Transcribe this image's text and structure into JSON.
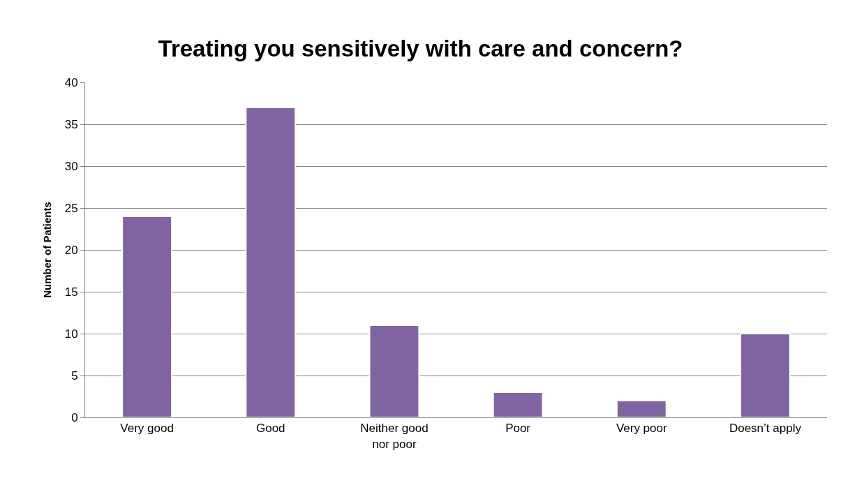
{
  "chart_data": {
    "type": "bar",
    "title": "Treating you sensitively with care and concern?",
    "ylabel": "Number of Patients",
    "categories": [
      "Very good",
      "Good",
      "Neither good nor poor",
      "Poor",
      "Very poor",
      "Doesn’t apply"
    ],
    "values": [
      24,
      37,
      11,
      3,
      2,
      10
    ],
    "color": "#8064a2",
    "ylim": [
      0,
      40
    ],
    "yticks": [
      0,
      5,
      10,
      15,
      20,
      25,
      30,
      35,
      40
    ],
    "grid": "y"
  }
}
